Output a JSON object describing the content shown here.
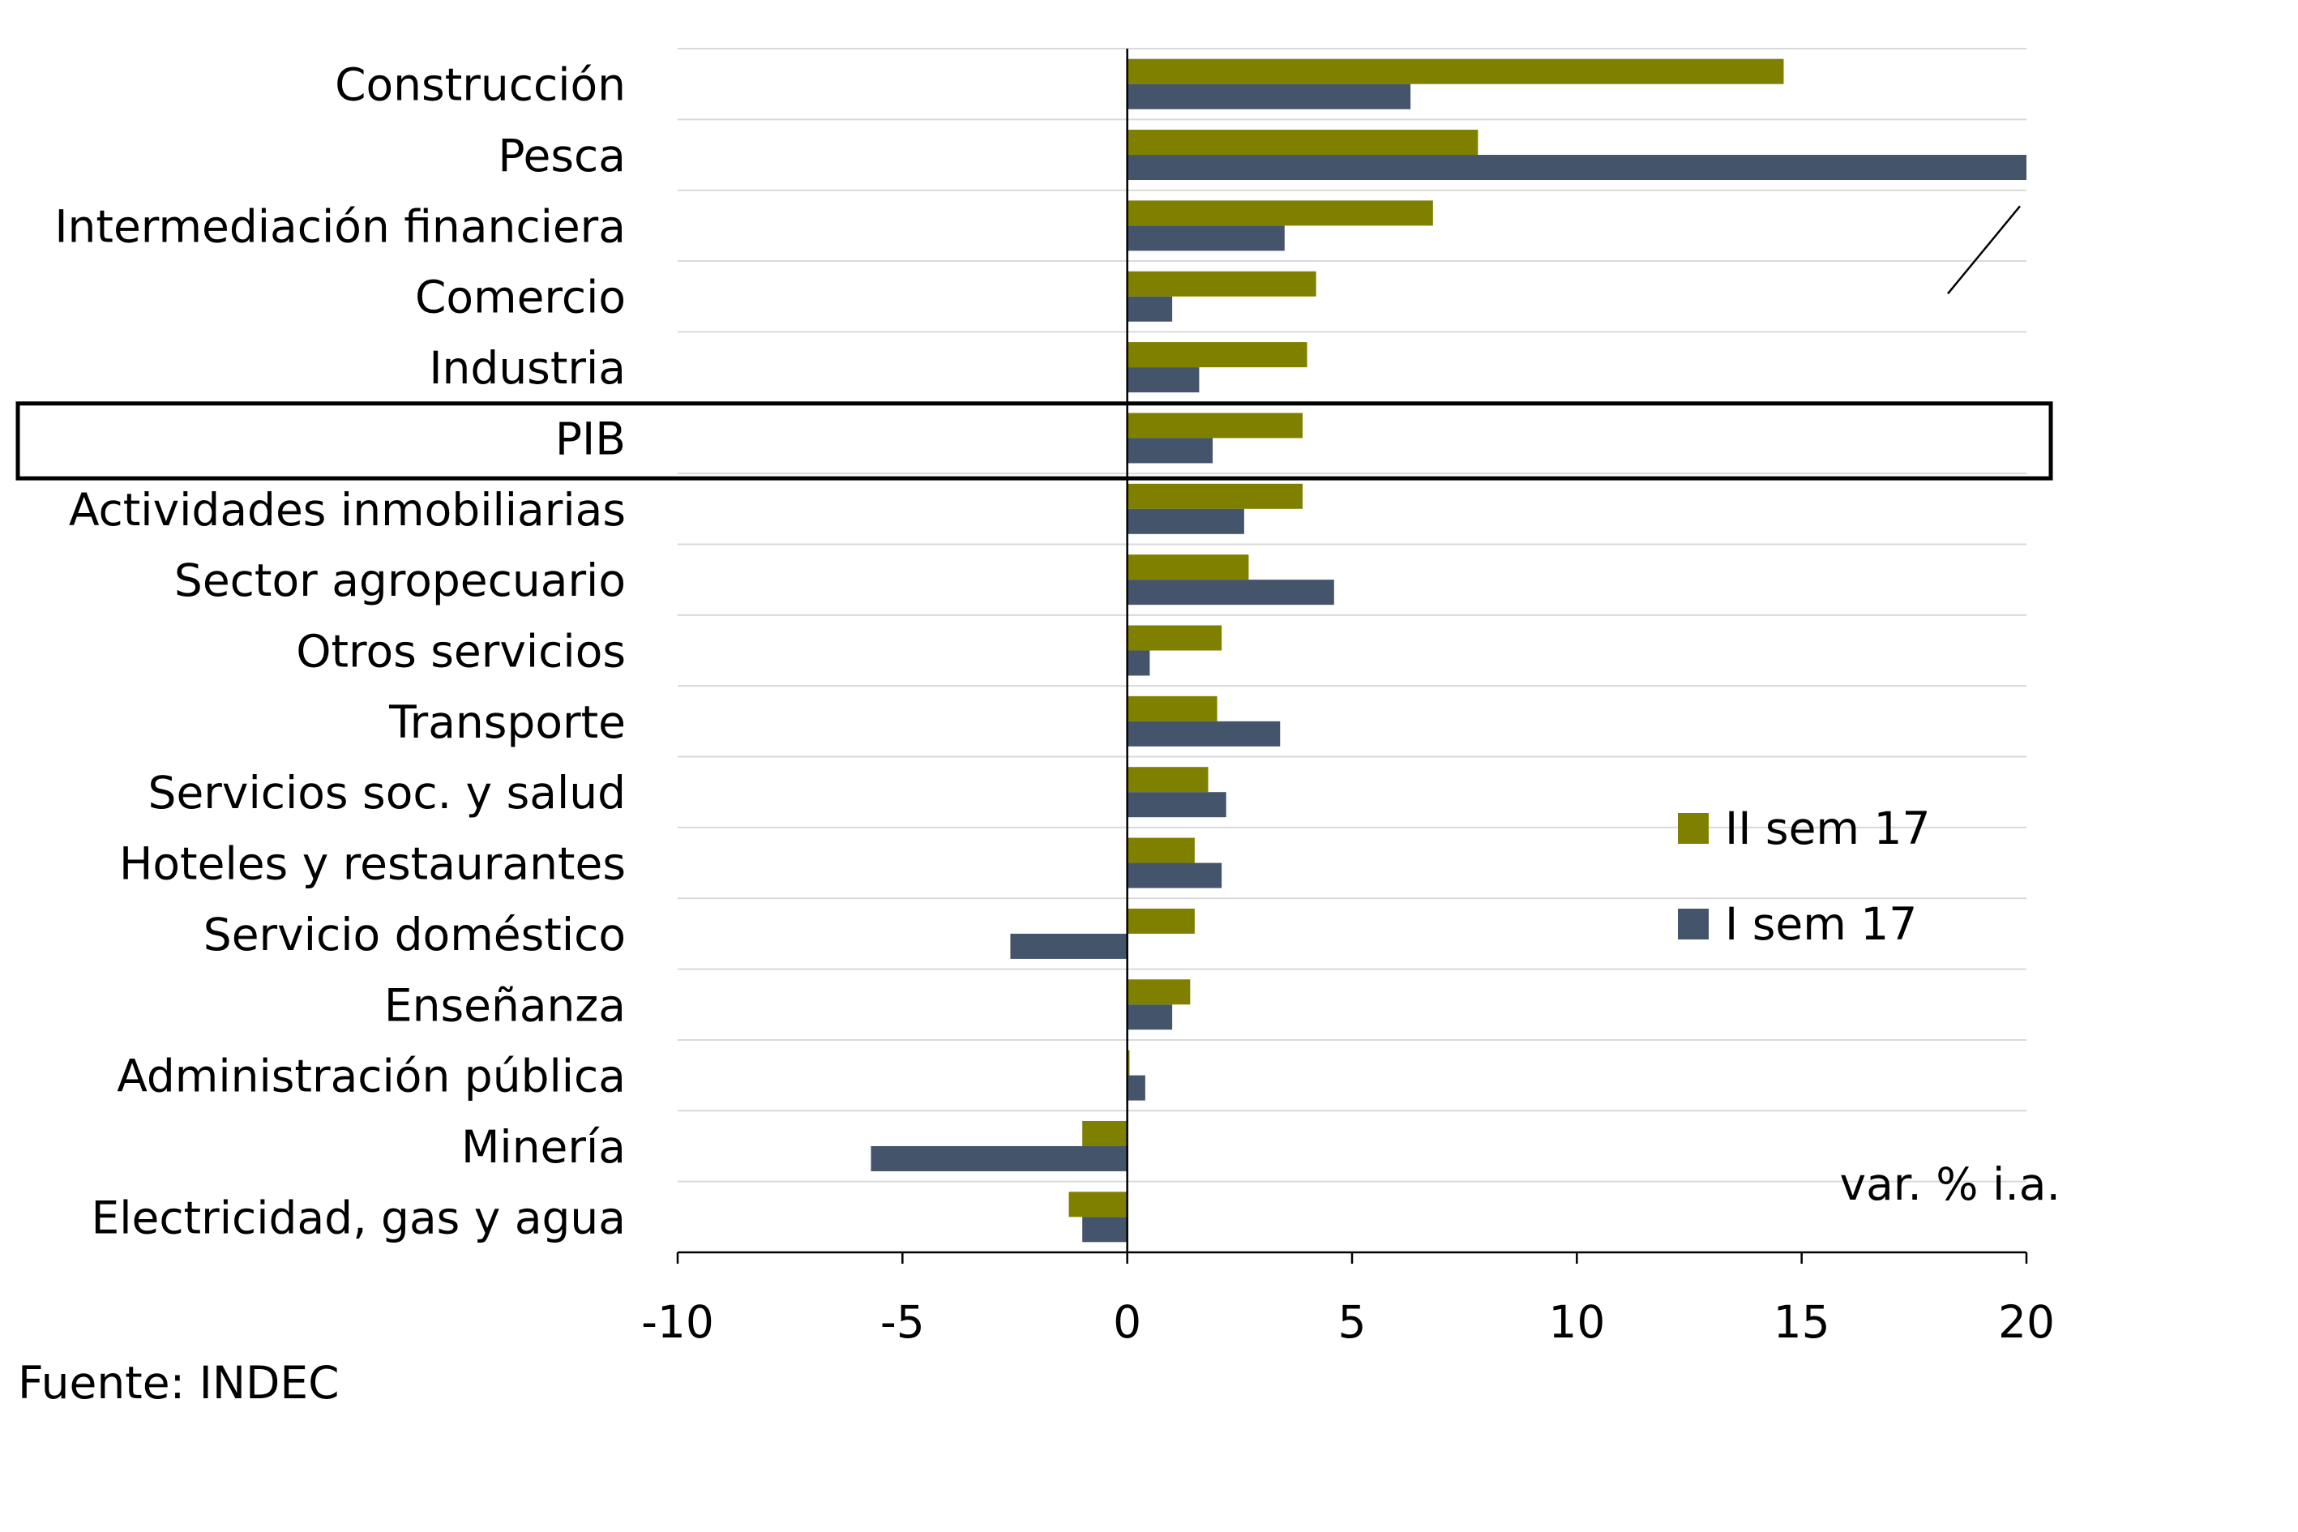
{
  "chart_data": {
    "type": "bar",
    "orientation": "horizontal",
    "categories": [
      "Construcción",
      "Pesca",
      "Intermediación financiera",
      "Comercio",
      "Industria",
      "PIB",
      "Actividades inmobiliarias",
      "Sector agropecuario",
      "Otros servicios",
      "Transporte",
      "Servicios soc. y salud",
      "Hoteles y restaurantes",
      "Servicio doméstico",
      "Enseñanza",
      "Administración pública",
      "Minería",
      "Electricidad, gas y agua"
    ],
    "series": [
      {
        "name": "II sem 17",
        "color": "#7f8000",
        "values": [
          14.6,
          7.8,
          6.8,
          4.2,
          4.0,
          3.9,
          3.9,
          2.7,
          2.1,
          2.0,
          1.8,
          1.5,
          1.5,
          1.4,
          0.05,
          -1.0,
          -1.3
        ]
      },
      {
        "name": "I sem 17",
        "color": "#44546a",
        "values": [
          6.3,
          20,
          3.5,
          1.0,
          1.6,
          1.9,
          2.6,
          4.6,
          0.5,
          3.4,
          2.2,
          2.1,
          -2.6,
          1.0,
          0.4,
          -5.7,
          -1.0
        ]
      }
    ],
    "xlim": [
      -10,
      20
    ],
    "xticks": [
      "-10",
      "-5",
      "0",
      "5",
      "10",
      "15",
      "20"
    ],
    "unit_label": "var. % i.a.",
    "highlighted_category": "PIB",
    "truncated_bar_marker": true,
    "grid": "horizontal",
    "legend_position": "right"
  },
  "source_text": "Fuente:  INDEC"
}
